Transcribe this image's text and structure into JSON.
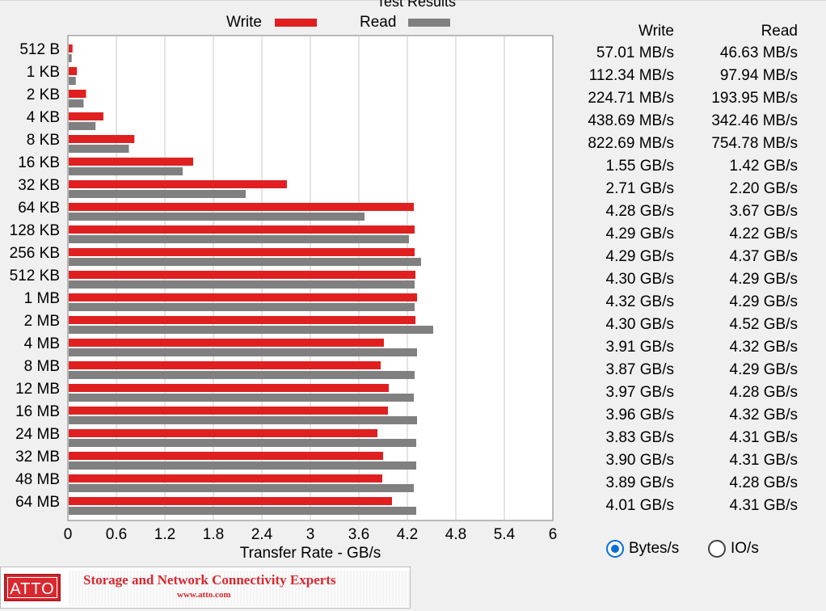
{
  "chart_data": {
    "type": "bar",
    "orientation": "horizontal",
    "title": "Test Results",
    "xlabel": "Transfer Rate - GB/s",
    "xlim": [
      0,
      6
    ],
    "xticks": [
      "0",
      "0.6",
      "1.2",
      "1.8",
      "2.4",
      "3",
      "3.6",
      "4.2",
      "4.8",
      "5.4",
      "6"
    ],
    "grid": true,
    "legend_position": "top",
    "categories": [
      "512 B",
      "1 KB",
      "2 KB",
      "4 KB",
      "8 KB",
      "16 KB",
      "32 KB",
      "64 KB",
      "128 KB",
      "256 KB",
      "512 KB",
      "1 MB",
      "2 MB",
      "4 MB",
      "8 MB",
      "12 MB",
      "16 MB",
      "24 MB",
      "32 MB",
      "48 MB",
      "64 MB"
    ],
    "series": [
      {
        "name": "Write",
        "color": "#e02020",
        "values": [
          0.057,
          0.112,
          0.225,
          0.439,
          0.823,
          1.55,
          2.71,
          4.28,
          4.29,
          4.29,
          4.3,
          4.32,
          4.3,
          3.91,
          3.87,
          3.97,
          3.96,
          3.83,
          3.9,
          3.89,
          4.01
        ],
        "labels": [
          "57.01 MB/s",
          "112.34 MB/s",
          "224.71 MB/s",
          "438.69 MB/s",
          "822.69 MB/s",
          "1.55 GB/s",
          "2.71 GB/s",
          "4.28 GB/s",
          "4.29 GB/s",
          "4.29 GB/s",
          "4.30 GB/s",
          "4.32 GB/s",
          "4.30 GB/s",
          "3.91 GB/s",
          "3.87 GB/s",
          "3.97 GB/s",
          "3.96 GB/s",
          "3.83 GB/s",
          "3.90 GB/s",
          "3.89 GB/s",
          "4.01 GB/s"
        ]
      },
      {
        "name": "Read",
        "color": "#808080",
        "values": [
          0.047,
          0.098,
          0.194,
          0.342,
          0.755,
          1.42,
          2.2,
          3.67,
          4.22,
          4.37,
          4.29,
          4.29,
          4.52,
          4.32,
          4.29,
          4.28,
          4.32,
          4.31,
          4.31,
          4.28,
          4.31
        ],
        "labels": [
          "46.63 MB/s",
          "97.94 MB/s",
          "193.95 MB/s",
          "342.46 MB/s",
          "754.78 MB/s",
          "1.42 GB/s",
          "2.20 GB/s",
          "3.67 GB/s",
          "4.22 GB/s",
          "4.37 GB/s",
          "4.29 GB/s",
          "4.29 GB/s",
          "4.52 GB/s",
          "4.32 GB/s",
          "4.29 GB/s",
          "4.28 GB/s",
          "4.32 GB/s",
          "4.31 GB/s",
          "4.31 GB/s",
          "4.28 GB/s",
          "4.31 GB/s"
        ]
      }
    ]
  },
  "results_header": {
    "write": "Write",
    "read": "Read"
  },
  "units": {
    "options": [
      {
        "label": "Bytes/s",
        "selected": true
      },
      {
        "label": "IO/s",
        "selected": false
      }
    ]
  },
  "banner": {
    "logo": "ATTO",
    "tagline": "Storage and Network Connectivity Experts",
    "url": "www.atto.com"
  }
}
